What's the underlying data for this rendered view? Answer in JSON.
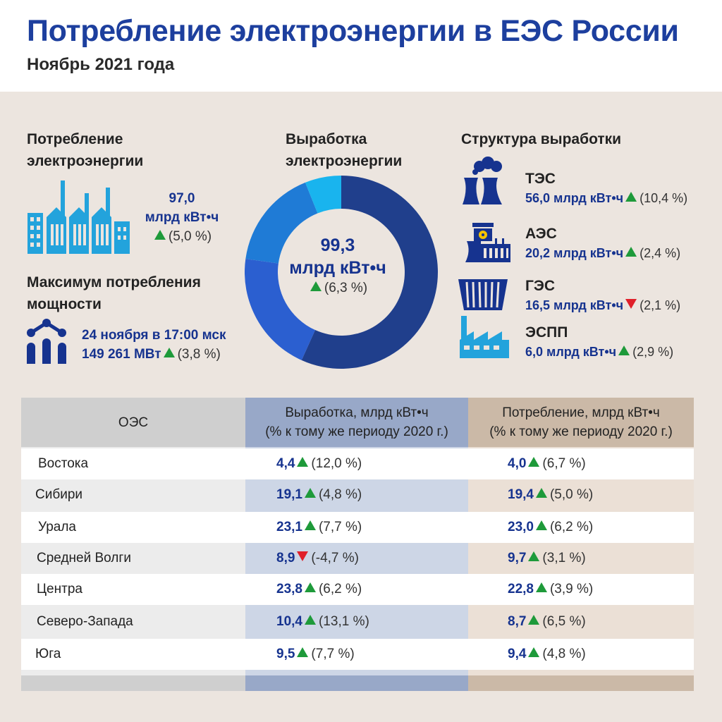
{
  "header": {
    "title": "Потребление электроэнергии в ЕЭС России",
    "subtitle": "Ноябрь 2021 года"
  },
  "consumption": {
    "heading_line1": "Потребление",
    "heading_line2": "электроэнергии",
    "value": "97,0",
    "unit": "млрд кВт•ч",
    "change": "(5,0 %)",
    "trend": "up",
    "icon": "factory-icon"
  },
  "max_power": {
    "heading_line1": "Максимум потребления",
    "heading_line2": "мощности",
    "date": "24 ноября в 17:00 мск",
    "value": "149 261 МВт",
    "change": "(3,8 %)",
    "trend": "up",
    "icon": "chart-growth-icon"
  },
  "generation": {
    "heading_line1": "Выработка",
    "heading_line2": "электроэнергии",
    "value": "99,3",
    "unit": "млрд кВт•ч",
    "change": "(6,3 %)",
    "trend": "up"
  },
  "structure": {
    "heading": "Структура выработки",
    "sources": [
      {
        "name": "ТЭС",
        "value": "56,0 млрд кВт•ч",
        "change": "(10,4 %)",
        "trend": "up",
        "icon": "cooling-tower-icon"
      },
      {
        "name": "АЭС",
        "value": "20,2 млрд кВт•ч",
        "change": "(2,4 %)",
        "trend": "up",
        "icon": "nuclear-plant-icon"
      },
      {
        "name": "ГЭС",
        "value": "16,5 млрд кВт•ч",
        "change": "(2,1 %)",
        "trend": "down",
        "icon": "hydro-dam-icon"
      },
      {
        "name": "ЭСПП",
        "value": "6,0 млрд кВт•ч",
        "change": "(2,9 %)",
        "trend": "up",
        "icon": "industrial-plant-icon"
      }
    ]
  },
  "chart_data": {
    "type": "pie",
    "categories": [
      "ТЭС",
      "АЭС",
      "ГЭС",
      "ЭСПП"
    ],
    "values": [
      56.0,
      20.2,
      16.5,
      6.0
    ],
    "total": 99.3,
    "colors": [
      "#203f8c",
      "#2b5fd0",
      "#1f7bd6",
      "#19b4ee"
    ]
  },
  "table": {
    "headers": {
      "oes": "ОЭС",
      "gen_line1": "Выработка, млрд кВт•ч",
      "gen_line2": "(% к тому же периоду 2020 г.)",
      "cons_line1": "Потребление, млрд кВт•ч",
      "cons_line2": "(% к тому же периоду 2020 г.)"
    },
    "rows": [
      {
        "name": "Востока",
        "gen": "4,4",
        "gen_change": "(12,0 %)",
        "gen_trend": "up",
        "cons": "4,0",
        "cons_change": "(6,7 %)",
        "cons_trend": "up"
      },
      {
        "name": "Сибири",
        "gen": "19,1",
        "gen_change": "(4,8 %)",
        "gen_trend": "up",
        "cons": "19,4",
        "cons_change": "(5,0 %)",
        "cons_trend": "up"
      },
      {
        "name": "Урала",
        "gen": "23,1",
        "gen_change": "(7,7 %)",
        "gen_trend": "up",
        "cons": "23,0",
        "cons_change": "(6,2 %)",
        "cons_trend": "up"
      },
      {
        "name": "Средней Волги",
        "gen": "8,9",
        "gen_change": "(-4,7 %)",
        "gen_trend": "down",
        "cons": "9,7",
        "cons_change": "(3,1 %)",
        "cons_trend": "up"
      },
      {
        "name": "Центра",
        "gen": "23,8",
        "gen_change": "(6,2 %)",
        "gen_trend": "up",
        "cons": "22,8",
        "cons_change": "(3,9 %)",
        "cons_trend": "up"
      },
      {
        "name": "Северо-Запада",
        "gen": "10,4",
        "gen_change": "(13,1 %)",
        "gen_trend": "up",
        "cons": "8,7",
        "cons_change": "(6,5 %)",
        "cons_trend": "up"
      },
      {
        "name": "Юга",
        "gen": "9,5",
        "gen_change": "(7,7 %)",
        "gen_trend": "up",
        "cons": "9,4",
        "cons_change": "(4,8 %)",
        "cons_trend": "up"
      }
    ]
  }
}
